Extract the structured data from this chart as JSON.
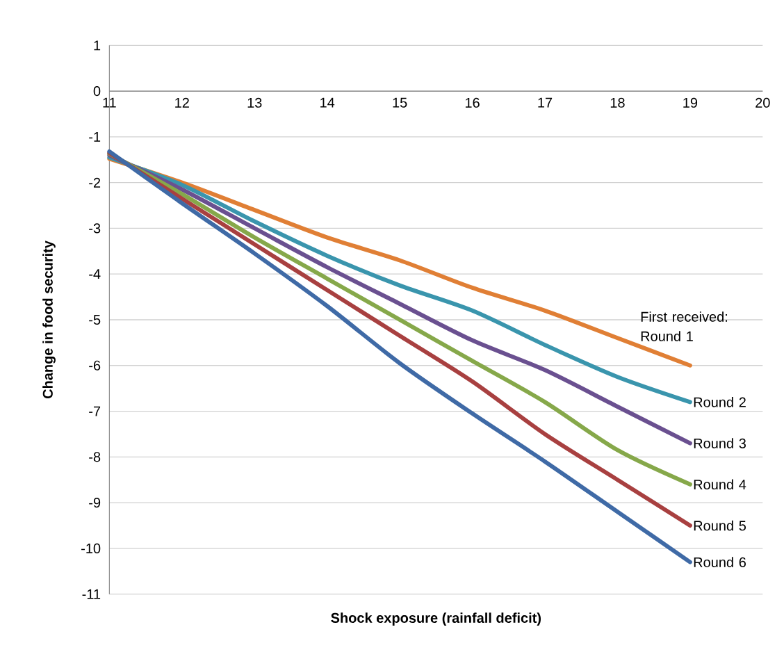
{
  "chart_data": {
    "type": "line",
    "xlabel": "Shock exposure (rainfall deficit)",
    "ylabel": "Change in food security",
    "x": [
      11,
      12,
      13,
      14,
      15,
      16,
      17,
      18,
      19
    ],
    "series": [
      {
        "name": "First received: Round 1",
        "color": "#e07f35",
        "values": [
          -1.48,
          -2.0,
          -2.6,
          -3.2,
          -3.7,
          -4.3,
          -4.8,
          -5.4,
          -6.0
        ]
      },
      {
        "name": "Round 2",
        "color": "#3a95ad",
        "values": [
          -1.45,
          -2.05,
          -2.85,
          -3.6,
          -4.25,
          -4.8,
          -5.55,
          -6.25,
          -6.8
        ]
      },
      {
        "name": "Round 3",
        "color": "#6a5090",
        "values": [
          -1.4,
          -2.15,
          -3.0,
          -3.85,
          -4.65,
          -5.45,
          -6.1,
          -6.9,
          -7.7
        ]
      },
      {
        "name": "Round 4",
        "color": "#86a84a",
        "values": [
          -1.37,
          -2.25,
          -3.2,
          -4.1,
          -5.0,
          -5.9,
          -6.8,
          -7.85,
          -8.6
        ]
      },
      {
        "name": "Round 5",
        "color": "#a84040",
        "values": [
          -1.35,
          -2.35,
          -3.35,
          -4.35,
          -5.35,
          -6.35,
          -7.5,
          -8.5,
          -9.5
        ]
      },
      {
        "name": "Round 6",
        "color": "#3f6aa6",
        "values": [
          -1.32,
          -2.45,
          -3.55,
          -4.7,
          -5.95,
          -7.05,
          -8.1,
          -9.2,
          -10.3
        ]
      }
    ],
    "xlim": [
      11,
      20
    ],
    "ylim": [
      -11,
      1
    ],
    "xticks": [
      11,
      12,
      13,
      14,
      15,
      16,
      17,
      18,
      19,
      20
    ],
    "yticks": [
      1,
      0,
      -1,
      -2,
      -3,
      -4,
      -5,
      -6,
      -7,
      -8,
      -9,
      -10,
      -11
    ],
    "grid": "y",
    "legend": false,
    "marker": "none",
    "line_style": "solid"
  }
}
